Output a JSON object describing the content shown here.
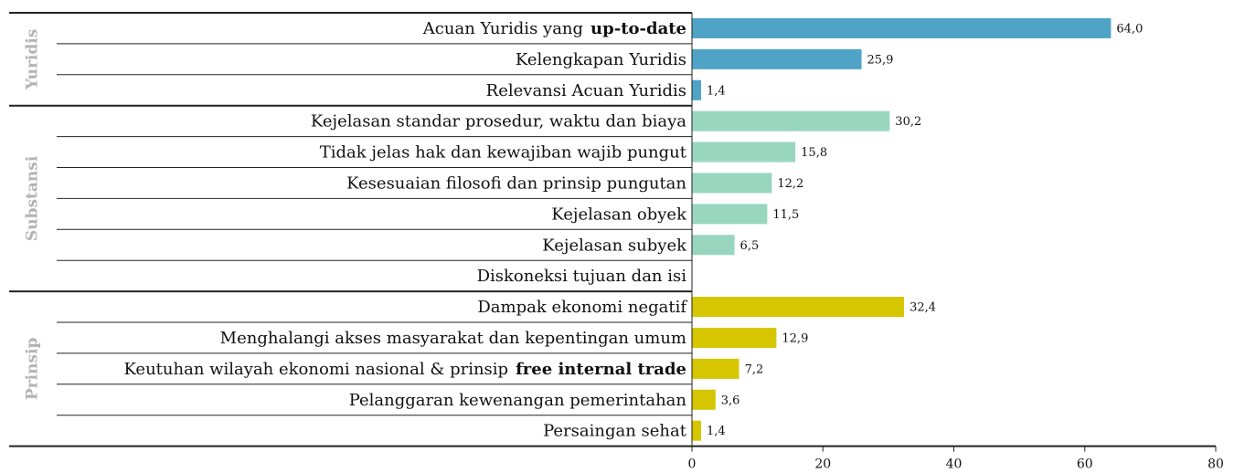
{
  "chart_data": {
    "type": "grouped-hbar",
    "xlim": [
      0,
      80
    ],
    "xticks": [
      0,
      20,
      40,
      60,
      80
    ],
    "groups": [
      {
        "name": "Yuridis",
        "color": "#4fa3c7",
        "categories": [
          [
            {
              "text": "Acuan Yuridis yang"
            },
            {
              "text": "up-to-date",
              "bold": true
            }
          ],
          [
            {
              "text": "Kelengkapan Yuridis"
            }
          ],
          [
            {
              "text": "Relevansi Acuan Yuridis"
            }
          ]
        ],
        "values": [
          64.0,
          25.9,
          1.4
        ],
        "value_labels": [
          "64,0",
          "25,9",
          "1,4"
        ]
      },
      {
        "name": "Substansi",
        "color": "#98d6c0",
        "categories": [
          [
            {
              "text": "Kejelasan standar prosedur, waktu  dan biaya"
            }
          ],
          [
            {
              "text": "Tidak jelas hak dan kewajiban wajib pungut"
            }
          ],
          [
            {
              "text": "Kesesuaian filosofi dan prinsip pungutan"
            }
          ],
          [
            {
              "text": "Kejelasan obyek"
            }
          ],
          [
            {
              "text": "Kejelasan subyek"
            }
          ],
          [
            {
              "text": "Diskoneksi tujuan dan isi"
            }
          ]
        ],
        "values": [
          30.2,
          15.8,
          12.2,
          11.5,
          6.5,
          null
        ],
        "value_labels": [
          "30,2",
          "15,8",
          "12,2",
          "11,5",
          "6,5",
          null
        ]
      },
      {
        "name": "Prinsip",
        "color": "#d6c600",
        "categories": [
          [
            {
              "text": "Dampak ekonomi negatif"
            }
          ],
          [
            {
              "text": "Menghalangi akses masyarakat dan kepentingan umum"
            }
          ],
          [
            {
              "text": "Keutuhan wilayah ekonomi nasional & prinsip"
            },
            {
              "text": "free internal trade",
              "bold": true
            }
          ],
          [
            {
              "text": "Pelanggaran kewenangan pemerintahan"
            }
          ],
          [
            {
              "text": "Persaingan sehat"
            }
          ]
        ],
        "values": [
          32.4,
          12.9,
          7.2,
          3.6,
          1.4
        ],
        "value_labels": [
          "32,4",
          "12,9",
          "7,2",
          "3,6",
          "1,4"
        ]
      }
    ]
  }
}
